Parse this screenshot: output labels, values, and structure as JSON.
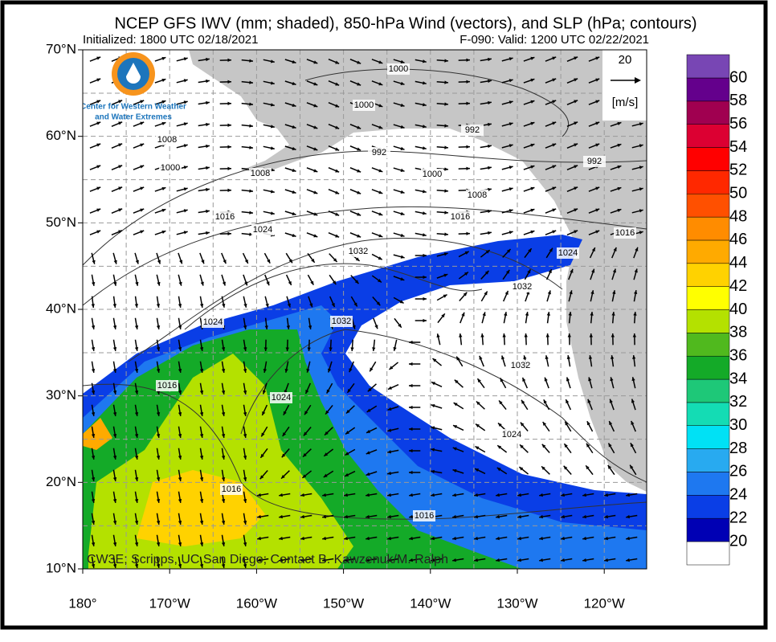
{
  "header": {
    "title": "NCEP GFS IWV (mm; shaded), 850-hPa Wind (vectors), and SLP (hPa; contours)",
    "initialized": "Initialized: 1800 UTC 02/18/2021",
    "valid": "F-090: Valid: 1200 UTC 02/22/2021"
  },
  "logo": {
    "line1": "Center for Western Weather",
    "line2": "and Water Extremes"
  },
  "reference_vector": {
    "speed": "20",
    "unit": "[m/s]"
  },
  "lat_labels": [
    "70°N",
    "60°N",
    "50°N",
    "40°N",
    "30°N",
    "20°N",
    "10°N"
  ],
  "lon_labels": [
    "180°",
    "170°W",
    "160°W",
    "150°W",
    "140°W",
    "130°W",
    "120°W"
  ],
  "contour_labels": [
    "1000",
    "1000",
    "992",
    "1008",
    "992",
    "992",
    "1000",
    "1008",
    "1000",
    "1008",
    "1016",
    "1016",
    "1024",
    "1016",
    "1024",
    "1032",
    "1032",
    "1024",
    "1032",
    "1016",
    "1032",
    "1024",
    "1024",
    "1016",
    "1016"
  ],
  "colorbar": {
    "levels": [
      20,
      22,
      24,
      26,
      28,
      30,
      32,
      34,
      36,
      38,
      40,
      42,
      44,
      46,
      48,
      50,
      52,
      54,
      56,
      58,
      60
    ],
    "colors": [
      "#ffffff",
      "#0000b4",
      "#0a3ee6",
      "#1e78f0",
      "#28aaf0",
      "#00e1f5",
      "#14dcb4",
      "#1ec878",
      "#14aa28",
      "#50b91e",
      "#b4e100",
      "#ffff00",
      "#ffd200",
      "#ffaa00",
      "#ff8c00",
      "#ff5000",
      "#ff2800",
      "#ff0000",
      "#dc0032",
      "#a00050",
      "#64008c",
      "#7846b4"
    ]
  },
  "credit": "CW3E; Scripps, UC San Diego; Contact B. Kawzenuk/M. Ralph"
}
